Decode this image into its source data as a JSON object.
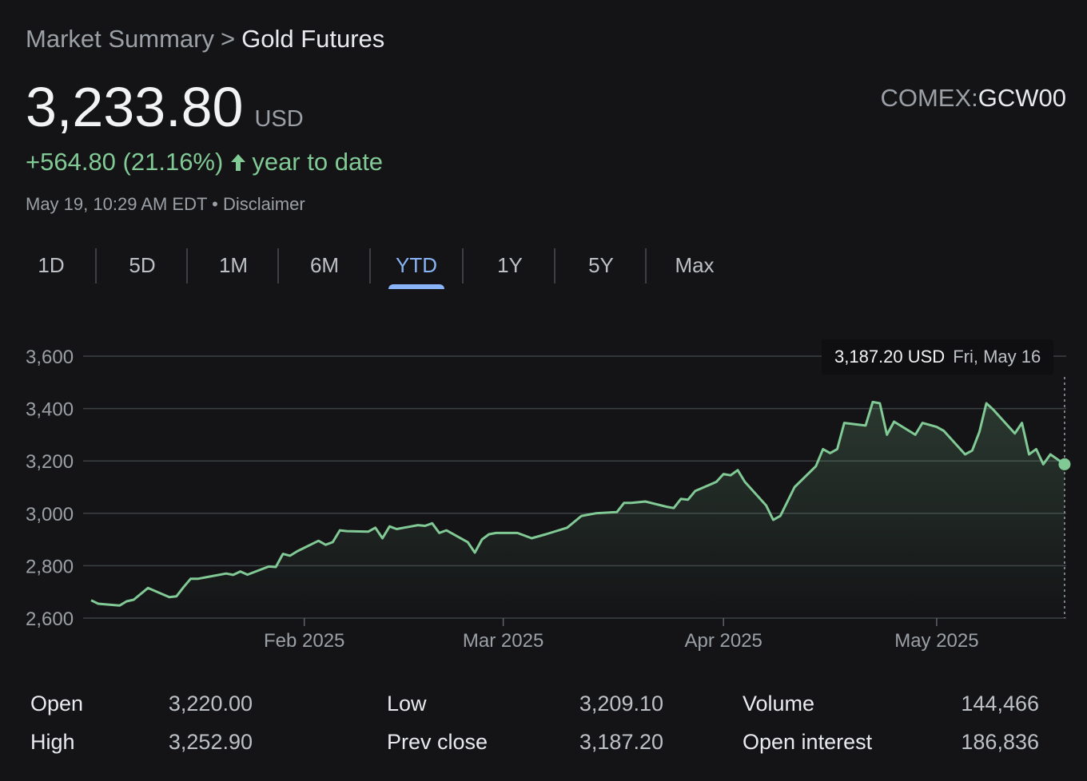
{
  "breadcrumb": {
    "parent": "Market Summary",
    "separator": ">",
    "current": "Gold Futures"
  },
  "quote": {
    "price": "3,233.80",
    "currency": "USD",
    "change": "+564.80 (21.16%)",
    "change_period": "year to date",
    "timestamp": "May 19, 10:29 AM EDT",
    "dot": "•",
    "disclaimer": "Disclaimer",
    "exchange": "COMEX:",
    "symbol": "GCW00"
  },
  "tabs": [
    "1D",
    "5D",
    "1M",
    "6M",
    "YTD",
    "1Y",
    "5Y",
    "Max"
  ],
  "active_tab": "YTD",
  "tooltip": {
    "price": "3,187.20 USD",
    "date": "Fri, May 16"
  },
  "colors": {
    "accent": "#8ab4f8",
    "positive": "#81c995",
    "background": "#141416"
  },
  "chart_data": {
    "type": "area",
    "y_ticks": [
      "3,600",
      "3,400",
      "3,200",
      "3,000",
      "2,800",
      "2,600"
    ],
    "x_ticks": [
      "Feb 2025",
      "Mar 2025",
      "Apr 2025",
      "May 2025"
    ],
    "ylim": [
      2600,
      3600
    ],
    "xlim": [
      "2025-01-02",
      "2025-05-19"
    ],
    "grid": true,
    "series": [
      {
        "points": [
          [
            "2025-01-02",
            2668
          ],
          [
            "2025-01-03",
            2655
          ],
          [
            "2025-01-06",
            2648
          ],
          [
            "2025-01-07",
            2664
          ],
          [
            "2025-01-08",
            2670
          ],
          [
            "2025-01-10",
            2715
          ],
          [
            "2025-01-13",
            2680
          ],
          [
            "2025-01-14",
            2683
          ],
          [
            "2025-01-15",
            2718
          ],
          [
            "2025-01-16",
            2750
          ],
          [
            "2025-01-17",
            2750
          ],
          [
            "2025-01-21",
            2770
          ],
          [
            "2025-01-22",
            2765
          ],
          [
            "2025-01-23",
            2778
          ],
          [
            "2025-01-24",
            2766
          ],
          [
            "2025-01-27",
            2797
          ],
          [
            "2025-01-28",
            2795
          ],
          [
            "2025-01-29",
            2845
          ],
          [
            "2025-01-30",
            2838
          ],
          [
            "2025-01-31",
            2855
          ],
          [
            "2025-02-03",
            2895
          ],
          [
            "2025-02-04",
            2880
          ],
          [
            "2025-02-05",
            2890
          ],
          [
            "2025-02-06",
            2935
          ],
          [
            "2025-02-07",
            2932
          ],
          [
            "2025-02-10",
            2930
          ],
          [
            "2025-02-11",
            2945
          ],
          [
            "2025-02-12",
            2905
          ],
          [
            "2025-02-13",
            2950
          ],
          [
            "2025-02-14",
            2940
          ],
          [
            "2025-02-17",
            2955
          ],
          [
            "2025-02-18",
            2952
          ],
          [
            "2025-02-19",
            2962
          ],
          [
            "2025-02-20",
            2925
          ],
          [
            "2025-02-21",
            2935
          ],
          [
            "2025-02-24",
            2890
          ],
          [
            "2025-02-25",
            2850
          ],
          [
            "2025-02-26",
            2900
          ],
          [
            "2025-02-27",
            2920
          ],
          [
            "2025-02-28",
            2925
          ],
          [
            "2025-03-03",
            2925
          ],
          [
            "2025-03-05",
            2905
          ],
          [
            "2025-03-07",
            2920
          ],
          [
            "2025-03-10",
            2945
          ],
          [
            "2025-03-12",
            2990
          ],
          [
            "2025-03-14",
            3000
          ],
          [
            "2025-03-17",
            3005
          ],
          [
            "2025-03-18",
            3040
          ],
          [
            "2025-03-19",
            3040
          ],
          [
            "2025-03-21",
            3045
          ],
          [
            "2025-03-24",
            3025
          ],
          [
            "2025-03-25",
            3020
          ],
          [
            "2025-03-26",
            3055
          ],
          [
            "2025-03-27",
            3052
          ],
          [
            "2025-03-28",
            3085
          ],
          [
            "2025-03-31",
            3120
          ],
          [
            "2025-04-01",
            3150
          ],
          [
            "2025-04-02",
            3145
          ],
          [
            "2025-04-03",
            3165
          ],
          [
            "2025-04-04",
            3120
          ],
          [
            "2025-04-07",
            3030
          ],
          [
            "2025-04-08",
            2975
          ],
          [
            "2025-04-09",
            2990
          ],
          [
            "2025-04-11",
            3100
          ],
          [
            "2025-04-14",
            3180
          ],
          [
            "2025-04-15",
            3245
          ],
          [
            "2025-04-16",
            3230
          ],
          [
            "2025-04-17",
            3245
          ],
          [
            "2025-04-18",
            3345
          ],
          [
            "2025-04-21",
            3335
          ],
          [
            "2025-04-22",
            3425
          ],
          [
            "2025-04-23",
            3420
          ],
          [
            "2025-04-24",
            3300
          ],
          [
            "2025-04-25",
            3350
          ],
          [
            "2025-04-28",
            3300
          ],
          [
            "2025-04-29",
            3345
          ],
          [
            "2025-05-01",
            3330
          ],
          [
            "2025-05-02",
            3315
          ],
          [
            "2025-05-05",
            3225
          ],
          [
            "2025-05-06",
            3240
          ],
          [
            "2025-05-07",
            3310
          ],
          [
            "2025-05-08",
            3420
          ],
          [
            "2025-05-09",
            3395
          ],
          [
            "2025-05-12",
            3305
          ],
          [
            "2025-05-13",
            3345
          ],
          [
            "2025-05-14",
            3225
          ],
          [
            "2025-05-15",
            3245
          ],
          [
            "2025-05-16",
            3187.2
          ],
          [
            "2025-05-17",
            3225
          ],
          [
            "2025-05-19",
            3187.2
          ]
        ]
      }
    ],
    "highlight": {
      "x": "2025-05-19",
      "y": 3187.2
    }
  },
  "stats": [
    {
      "label": "Open",
      "value": "3,220.00"
    },
    {
      "label": "High",
      "value": "3,252.90"
    },
    {
      "label": "Low",
      "value": "3,209.10"
    },
    {
      "label": "Prev close",
      "value": "3,187.20"
    },
    {
      "label": "Volume",
      "value": "144,466"
    },
    {
      "label": "Open interest",
      "value": "186,836"
    }
  ]
}
